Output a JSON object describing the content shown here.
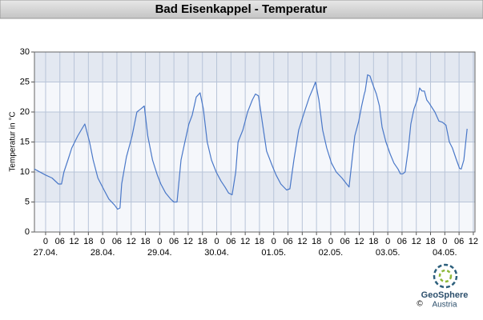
{
  "chart_data": {
    "type": "line",
    "title": "Bad Eisenkappel - Temperatur",
    "ylabel": "Temperatur in °C",
    "color": "#4a78c8",
    "grid": true,
    "ylim": [
      0,
      30
    ],
    "yticks": [
      0,
      5,
      10,
      15,
      20,
      25,
      30
    ],
    "xlim": [
      -4.7,
      180.7
    ],
    "xticks": [
      {
        "value": 0,
        "label": "0"
      },
      {
        "value": 6,
        "label": "06"
      },
      {
        "value": 12,
        "label": "12"
      },
      {
        "value": 18,
        "label": "18"
      },
      {
        "value": 24,
        "label": "0"
      },
      {
        "value": 30,
        "label": "06"
      },
      {
        "value": 36,
        "label": "12"
      },
      {
        "value": 42,
        "label": "18"
      },
      {
        "value": 48,
        "label": "0"
      },
      {
        "value": 54,
        "label": "06"
      },
      {
        "value": 60,
        "label": "12"
      },
      {
        "value": 66,
        "label": "18"
      },
      {
        "value": 72,
        "label": "0"
      },
      {
        "value": 78,
        "label": "06"
      },
      {
        "value": 84,
        "label": "12"
      },
      {
        "value": 90,
        "label": "18"
      },
      {
        "value": 96,
        "label": "0"
      },
      {
        "value": 102,
        "label": "06"
      },
      {
        "value": 108,
        "label": "12"
      },
      {
        "value": 114,
        "label": "18"
      },
      {
        "value": 120,
        "label": "0"
      },
      {
        "value": 126,
        "label": "06"
      },
      {
        "value": 132,
        "label": "12"
      },
      {
        "value": 138,
        "label": "18"
      },
      {
        "value": 144,
        "label": "0"
      },
      {
        "value": 150,
        "label": "06"
      },
      {
        "value": 156,
        "label": "12"
      },
      {
        "value": 162,
        "label": "18"
      },
      {
        "value": 168,
        "label": "0"
      },
      {
        "value": 174,
        "label": "06"
      },
      {
        "value": 180,
        "label": "12"
      }
    ],
    "x_day_labels": [
      {
        "value": 0,
        "label": "27.04."
      },
      {
        "value": 24,
        "label": "28.04."
      },
      {
        "value": 48,
        "label": "29.04."
      },
      {
        "value": 72,
        "label": "30.04."
      },
      {
        "value": 96,
        "label": "01.05."
      },
      {
        "value": 120,
        "label": "02.05."
      },
      {
        "value": 144,
        "label": "03.05."
      },
      {
        "value": 168,
        "label": "04.05."
      }
    ],
    "x": [
      -4.7,
      0,
      2.7,
      5.4,
      6.7,
      7.7,
      9.4,
      11,
      13.5,
      15,
      16.5,
      18.5,
      20,
      22,
      24.6,
      26.6,
      29,
      30.3,
      31.3,
      32,
      34,
      36.4,
      38.4,
      40,
      41.5,
      43,
      45,
      47,
      48.5,
      50.5,
      52.6,
      54,
      55.3,
      57,
      58.6,
      60.3,
      61.7,
      63.4,
      65,
      66.4,
      68,
      69.8,
      71.8,
      73.8,
      75.5,
      77,
      78.5,
      80,
      81,
      83,
      85,
      87,
      88.3,
      89.6,
      91.3,
      93,
      95.4,
      97,
      99,
      101.4,
      102.8,
      104.5,
      106.5,
      108.9,
      111,
      112.6,
      113.6,
      115,
      116.6,
      118.3,
      120.3,
      122.3,
      124.7,
      126.7,
      127.7,
      128.7,
      130.1,
      131.8,
      133,
      134.1,
      134.5,
      135.5,
      136.5,
      137.8,
      139.2,
      140.5,
      141.6,
      143.2,
      145,
      146.6,
      148.3,
      149.3,
      150.3,
      151.3,
      152.7,
      153.7,
      155,
      156.4,
      157.4,
      158.4,
      159.4,
      160.4,
      161.4,
      163.8,
      165.5,
      167,
      168.5,
      169.9,
      171.2,
      172.9,
      174.2,
      174.9,
      176,
      177.4
    ],
    "values": [
      10.5,
      9.5,
      9,
      8,
      8,
      10,
      12,
      14,
      16,
      17,
      18,
      15,
      12,
      9,
      7,
      5.5,
      4.5,
      3.8,
      4,
      8,
      12.5,
      16,
      20,
      20.5,
      21,
      16,
      12,
      9.5,
      8,
      6.5,
      5.5,
      5,
      5,
      12,
      15,
      18,
      19.5,
      22.5,
      23.2,
      20.5,
      15,
      12,
      10,
      8.5,
      7.5,
      6.5,
      6.2,
      10,
      15,
      17,
      20,
      22,
      23,
      22.7,
      18,
      13.5,
      11,
      9.5,
      8,
      7,
      7.2,
      12,
      17,
      20,
      22.5,
      24,
      25,
      22,
      17,
      14,
      11.5,
      10,
      9,
      8,
      7.5,
      11,
      16,
      18.5,
      21,
      23,
      23.5,
      26.2,
      26,
      24.5,
      23,
      21,
      17.5,
      15,
      13,
      11.5,
      10.5,
      9.7,
      9.7,
      10,
      14,
      18,
      20.5,
      22,
      24,
      23.5,
      23.5,
      22,
      21.5,
      20,
      18.5,
      18.3,
      17.8,
      15,
      14,
      12,
      10.6,
      10.5,
      12,
      17.2
    ]
  },
  "logo": {
    "name": "GeoSphere",
    "sub": "Austria",
    "copyright": "©"
  }
}
